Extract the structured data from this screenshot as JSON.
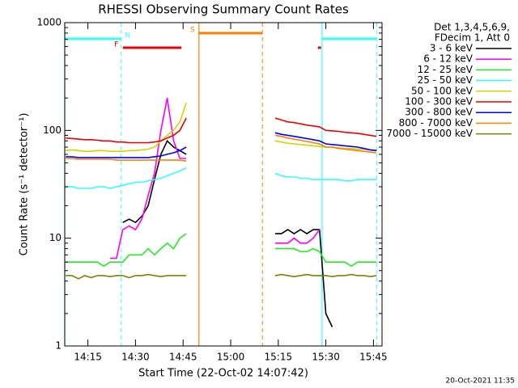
{
  "chart_data": {
    "type": "line",
    "title": "RHESSI Observing Summary Count Rates",
    "x_label": "Start Time (22-Oct-02 14:07:42)",
    "y_label": "Count Rate (s⁻¹ detector⁻¹)",
    "timestamp": "20-Oct-2021 11:35",
    "legend_header": [
      "Det 1,3,4,5,6,9,",
      "FDecim 1, Att 0"
    ],
    "log_y": true,
    "xlim": [
      7.7,
      107.7
    ],
    "xticks": [
      {
        "value": 15,
        "label": "14:15"
      },
      {
        "value": 30,
        "label": "14:30"
      },
      {
        "value": 45,
        "label": "14:45"
      },
      {
        "value": 60,
        "label": "15:00"
      },
      {
        "value": 75,
        "label": "15:15"
      },
      {
        "value": 90,
        "label": "15:30"
      },
      {
        "value": 105,
        "label": "15:45"
      }
    ],
    "ylim": [
      1,
      1000
    ],
    "yticks": [
      1,
      10,
      100,
      1000
    ],
    "x": [
      8,
      10,
      12,
      14,
      16,
      18,
      20,
      22,
      24,
      26,
      28,
      30,
      32,
      34,
      36,
      38,
      40,
      42,
      44,
      46,
      60,
      74,
      76,
      78,
      80,
      82,
      84,
      86,
      88,
      90,
      92,
      94,
      96,
      98,
      100,
      102,
      104,
      106
    ],
    "series": [
      {
        "name": "3 - 6 keV",
        "color": "#000000",
        "values": [
          null,
          null,
          null,
          null,
          null,
          null,
          null,
          null,
          null,
          14,
          15,
          14,
          16,
          20,
          35,
          60,
          80,
          70,
          65,
          60,
          null,
          11,
          11,
          12,
          11,
          12,
          11,
          12,
          12,
          2,
          1.5,
          null,
          null,
          null,
          null,
          null,
          null,
          null
        ]
      },
      {
        "name": "6 - 12 keV",
        "color": "#ff00ff",
        "values": [
          null,
          null,
          null,
          null,
          null,
          null,
          null,
          6.5,
          6.5,
          12,
          13,
          12,
          15,
          25,
          40,
          100,
          200,
          80,
          55,
          55,
          null,
          9,
          9,
          9,
          10,
          9,
          9,
          10,
          12,
          null,
          null,
          null,
          null,
          null,
          null,
          null,
          null,
          null
        ]
      },
      {
        "name": "12 - 25 keV",
        "color": "#22ee22",
        "values": [
          6,
          6,
          6,
          6,
          6,
          6,
          5.5,
          6,
          6,
          6,
          7,
          7,
          7,
          8,
          7,
          8,
          9,
          8,
          10,
          11,
          null,
          8,
          8,
          8,
          8,
          7.5,
          7.5,
          8,
          7.5,
          6,
          6,
          6,
          6,
          5.5,
          6,
          6,
          6,
          6
        ]
      },
      {
        "name": "25 - 50 keV",
        "color": "#33ffff",
        "values": [
          30,
          30,
          29,
          29,
          29,
          30,
          30,
          29,
          30,
          31,
          32,
          33,
          33,
          34,
          35,
          36,
          38,
          40,
          42,
          45,
          null,
          40,
          38,
          37,
          37,
          36,
          36,
          35,
          35,
          35,
          35,
          35,
          34,
          34,
          35,
          35,
          35,
          35
        ]
      },
      {
        "name": "50 - 100 keV",
        "color": "#d4d400",
        "values": [
          65,
          66,
          65,
          64,
          64,
          65,
          65,
          64,
          64,
          64,
          65,
          65,
          66,
          67,
          70,
          80,
          90,
          100,
          120,
          180,
          null,
          80,
          78,
          76,
          75,
          74,
          73,
          72,
          71,
          70,
          70,
          69,
          68,
          68,
          67,
          67,
          66,
          66
        ]
      },
      {
        "name": "100 - 300 keV",
        "color": "#ee0000",
        "values": [
          85,
          84,
          83,
          82,
          82,
          81,
          80,
          80,
          78,
          78,
          77,
          77,
          77,
          77,
          78,
          80,
          85,
          90,
          100,
          130,
          null,
          130,
          125,
          120,
          118,
          115,
          112,
          110,
          108,
          100,
          99,
          98,
          96,
          95,
          94,
          92,
          90,
          88
        ]
      },
      {
        "name": "300 - 800 keV",
        "color": "#0000ff",
        "values": [
          57,
          57,
          56,
          56,
          56,
          56,
          56,
          56,
          56,
          56,
          56,
          56,
          56,
          56,
          57,
          58,
          60,
          62,
          65,
          70,
          null,
          95,
          92,
          90,
          88,
          86,
          84,
          82,
          80,
          75,
          74,
          73,
          72,
          71,
          70,
          68,
          66,
          65
        ]
      },
      {
        "name": "800 - 7000 keV",
        "color": "#ff8000",
        "values": [
          55,
          55,
          54,
          54,
          54,
          54,
          54,
          54,
          53,
          53,
          53,
          53,
          53,
          53,
          53,
          53,
          53,
          53,
          53,
          52,
          null,
          90,
          88,
          85,
          83,
          81,
          79,
          77,
          75,
          70,
          70,
          68,
          67,
          66,
          65,
          64,
          63,
          62
        ]
      },
      {
        "name": "7000 - 15000 keV",
        "color": "#808000",
        "values": [
          4.5,
          4.5,
          4.2,
          4.5,
          4.3,
          4.5,
          4.5,
          4.4,
          4.5,
          4.5,
          4.3,
          4.5,
          4.5,
          4.6,
          4.5,
          4.4,
          4.5,
          4.5,
          4.5,
          4.5,
          null,
          4.5,
          4.6,
          4.5,
          4.4,
          4.5,
          4.6,
          4.5,
          4.5,
          4.5,
          4.4,
          4.5,
          4.5,
          4.6,
          4.5,
          4.5,
          4.4,
          4.5
        ]
      }
    ],
    "intervals": [
      {
        "label": "N",
        "color": "#33ffff",
        "spans": [
          [
            7.7,
            25.5
          ],
          [
            88.8,
            106
          ]
        ]
      },
      {
        "label": "F",
        "color": "#ee0000",
        "spans": [
          [
            26,
            44.5
          ],
          [
            87.5,
            88.5
          ]
        ]
      },
      {
        "label": "S",
        "color": "#ff8000",
        "spans": [
          [
            50,
            70
          ]
        ]
      }
    ]
  }
}
